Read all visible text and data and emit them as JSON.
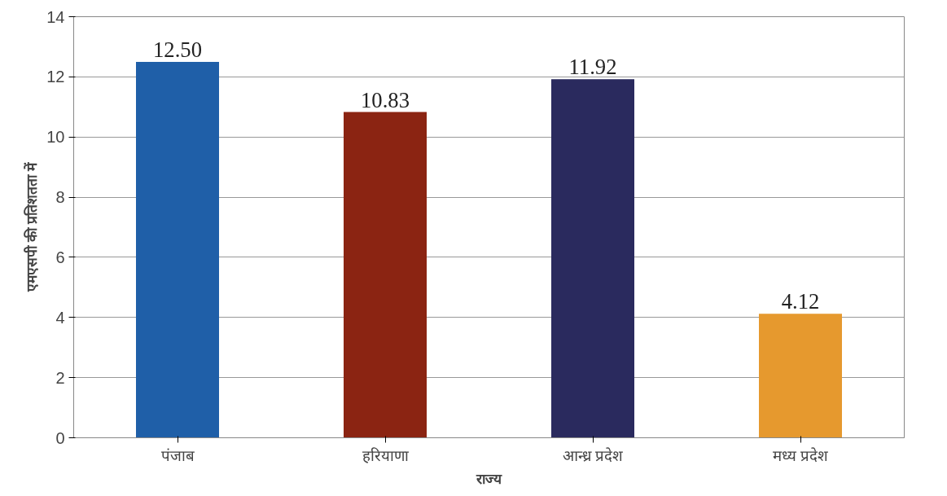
{
  "chart_data": {
    "type": "bar",
    "xlabel": "राज्य",
    "ylabel": "एमएसपी की प्रतिशतता में",
    "categories": [
      "पंजाब",
      "हरियाणा",
      "आन्ध्र प्रदेश",
      "मध्य प्रदेश"
    ],
    "values": [
      12.5,
      10.83,
      11.92,
      4.12
    ],
    "colors": [
      "#1f5fa8",
      "#8b2412",
      "#2a2a5e",
      "#e6992e"
    ],
    "value_labels": [
      "12.50",
      "10.83",
      "11.92",
      "4.12"
    ],
    "ylim": [
      0,
      14
    ],
    "yticks": [
      0,
      2,
      4,
      6,
      8,
      10,
      12,
      14
    ],
    "grid": "y"
  }
}
